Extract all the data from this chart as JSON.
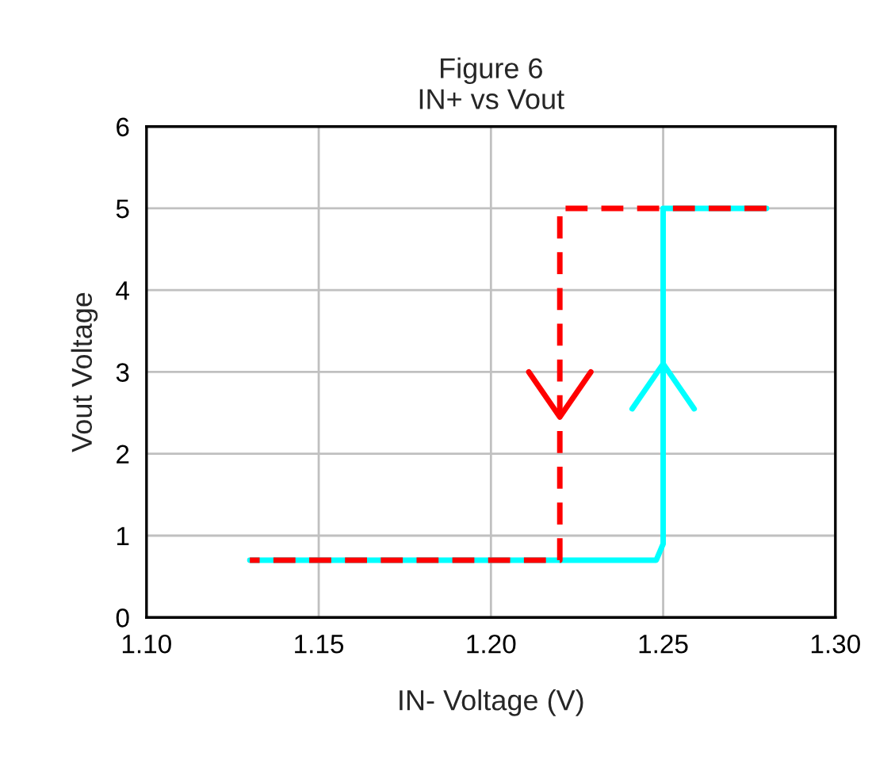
{
  "chart_data": {
    "type": "line",
    "title": "Figure 6\nIN+ vs Vout",
    "xlabel": "IN- Voltage (V)",
    "ylabel": "Vout Voltage",
    "series": [
      {
        "color": "#00ffff",
        "line_style": "solid",
        "x": [
          1.13,
          1.248,
          1.25,
          1.25,
          1.28
        ],
        "values": [
          0.7,
          0.7,
          0.9,
          5,
          5
        ]
      },
      {
        "color": "#ff0000",
        "line_style": "dashed",
        "x": [
          1.28,
          1.22,
          1.22,
          1.13
        ],
        "values": [
          5,
          5,
          0.7,
          0.7
        ]
      }
    ],
    "xlim": [
      1.1,
      1.3
    ],
    "xticks": [
      {
        "value": 1.1,
        "label": "1.10"
      },
      1.15,
      {
        "value": 1.2,
        "label": "1.20"
      },
      1.25,
      {
        "value": 1.3,
        "label": "1.30"
      }
    ],
    "ylim": [
      0,
      6
    ],
    "yticks": [
      0,
      1,
      2,
      3,
      4,
      5,
      6
    ],
    "grid": true,
    "marker": "none",
    "legend": false
  }
}
